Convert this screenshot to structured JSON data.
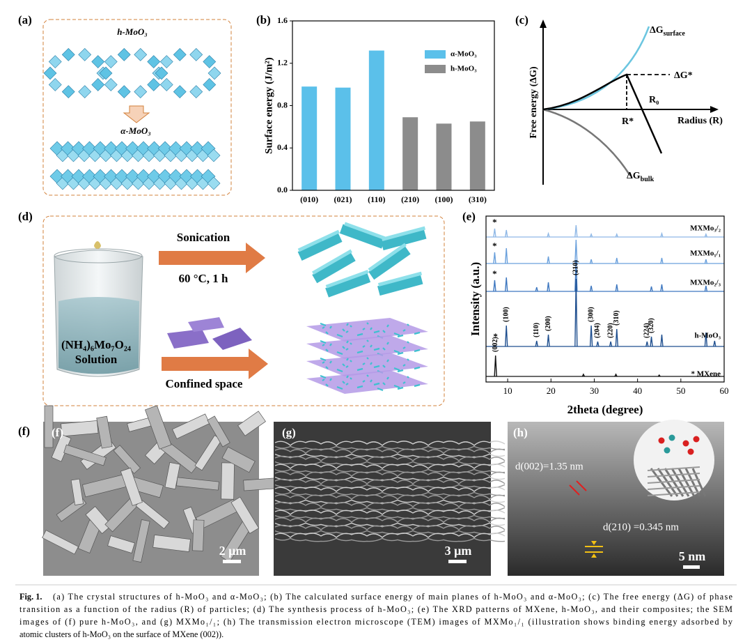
{
  "panel_labels": [
    "(a)",
    "(b)",
    "(c)",
    "(d)",
    "(e)",
    "(f)",
    "(g)",
    "(h)"
  ],
  "panel_a": {
    "top_label": "h-MoO₃",
    "bottom_label": "α-MoO₃"
  },
  "chart_data": [
    {
      "type": "bar",
      "y_label": "Surface energy (J/m²)",
      "categories": [
        "(010)",
        "(021)",
        "(110)",
        "(210)",
        "(100)",
        "(310)"
      ],
      "series": [
        {
          "name": "α-MoO₃",
          "color": "#5bc0ea",
          "values": [
            0.98,
            0.97,
            1.32,
            null,
            null,
            null
          ]
        },
        {
          "name": "h-MoO₃",
          "color": "#8c8c8c",
          "values": [
            null,
            null,
            null,
            0.69,
            0.63,
            0.65
          ]
        }
      ],
      "ylim": [
        0,
        1.6
      ],
      "yticks": [
        {
          "value": 0,
          "label": "0.0"
        },
        0.4,
        0.8,
        1.2,
        1.6
      ]
    },
    {
      "type": "line",
      "y_label": "Intensity (a.u.)",
      "x_label": "2theta (degree)",
      "xlim": [
        5,
        60
      ],
      "xticks": [
        10,
        20,
        30,
        40,
        50,
        60
      ],
      "series": [
        {
          "name": "MXMo₃/₂",
          "marker": "*",
          "color": "#8fb8e6",
          "x": [
            7.0,
            9.7,
            19.4,
            25.8,
            29.3,
            35.2,
            45.6,
            55.8
          ],
          "values": [
            0.12,
            0.1,
            0.05,
            0.17,
            0.04,
            0.04,
            0.05,
            0.04
          ]
        },
        {
          "name": "MXMo₁/₁",
          "marker": "*",
          "color": "#6aa0dc",
          "x": [
            7.0,
            9.7,
            19.4,
            25.8,
            29.3,
            35.2,
            45.6,
            55.8
          ],
          "values": [
            0.16,
            0.22,
            0.1,
            0.34,
            0.06,
            0.08,
            0.08,
            0.06
          ]
        },
        {
          "name": "MXMo₂/₃",
          "marker": "*",
          "color": "#3f78c0",
          "x": [
            7.0,
            9.7,
            16.7,
            19.4,
            25.8,
            29.3,
            35.2,
            43.2,
            45.6,
            55.8
          ],
          "values": [
            0.16,
            0.2,
            0.06,
            0.13,
            0.45,
            0.08,
            0.1,
            0.07,
            0.1,
            0.08
          ]
        },
        {
          "name": "h-MoO₃",
          "color": "#1f4f8f",
          "x": [
            9.7,
            16.7,
            19.4,
            25.8,
            29.3,
            30.8,
            33.8,
            35.2,
            42.2,
            43.2,
            45.6,
            55.8,
            57.8
          ],
          "values": [
            0.3,
            0.08,
            0.17,
            0.97,
            0.3,
            0.07,
            0.07,
            0.25,
            0.07,
            0.14,
            0.17,
            0.2,
            0.08
          ]
        },
        {
          "name": "* MXene",
          "marker": "*",
          "color": "#111111",
          "x": [
            7.2,
            27.5,
            35.0,
            45.0
          ],
          "values": [
            0.3,
            0.03,
            0.03,
            0.02
          ]
        }
      ],
      "annotations": [
        {
          "text": "(100)",
          "x": 9.7
        },
        {
          "text": "(110)",
          "x": 16.7
        },
        {
          "text": "(200)",
          "x": 19.4
        },
        {
          "text": "(210)",
          "x": 25.8
        },
        {
          "text": "(300)",
          "x": 29.3
        },
        {
          "text": "(204)",
          "x": 30.8
        },
        {
          "text": "(220)",
          "x": 33.8
        },
        {
          "text": "(310)",
          "x": 35.2
        },
        {
          "text": "(224)",
          "x": 42.2
        },
        {
          "text": "(320)",
          "x": 43.2
        },
        {
          "text": "(002)",
          "x": 7.2
        }
      ]
    }
  ],
  "panel_c": {
    "y_label": "Free energy (ΔG)",
    "x_label": "Radius (R)",
    "surface": {
      "text": "ΔG",
      "sub": "surface"
    },
    "star": "ΔG*",
    "r0": "R₀",
    "rstar": "R*",
    "bulk": {
      "text": "ΔG",
      "sub": "bulk"
    }
  },
  "panel_d": {
    "top_step": "Sonication",
    "condition": "60 °C, 1 h",
    "precursor": "(NH₄)₆Mo₇O₂₄",
    "solution": "Solution",
    "bottom_step": "Confined space"
  },
  "panel_f": {
    "scale_bar": "2 μm"
  },
  "panel_g": {
    "scale_bar": "3 μm"
  },
  "panel_h": {
    "d002": "d(002)=1.35 nm",
    "d210": "d(210) =0.345 nm",
    "scale_bar": "5 nm"
  },
  "caption": {
    "label": "Fig. 1.",
    "lines": [
      "(a) The crystal structures of h-MoO₃ and α-MoO₃; (b) The calculated surface energy of main planes of h-MoO₃ and α-MoO₃; (c) The free energy (ΔG) of phase",
      "transition as a function of the radius (R) of particles; (d) The synthesis process of h-MoO₃; (e) The XRD patterns of MXene, h-MoO₃, and their composites; the SEM",
      "images of (f) pure h-MoO₃, and (g) MXMo₁/₁; (h) The transmission electron microscope (TEM) images of MXMo₁/₁ (illustration shows binding energy adsorbed by",
      "atomic clusters of h-MoO₃ on the surface of MXene (002))."
    ]
  }
}
